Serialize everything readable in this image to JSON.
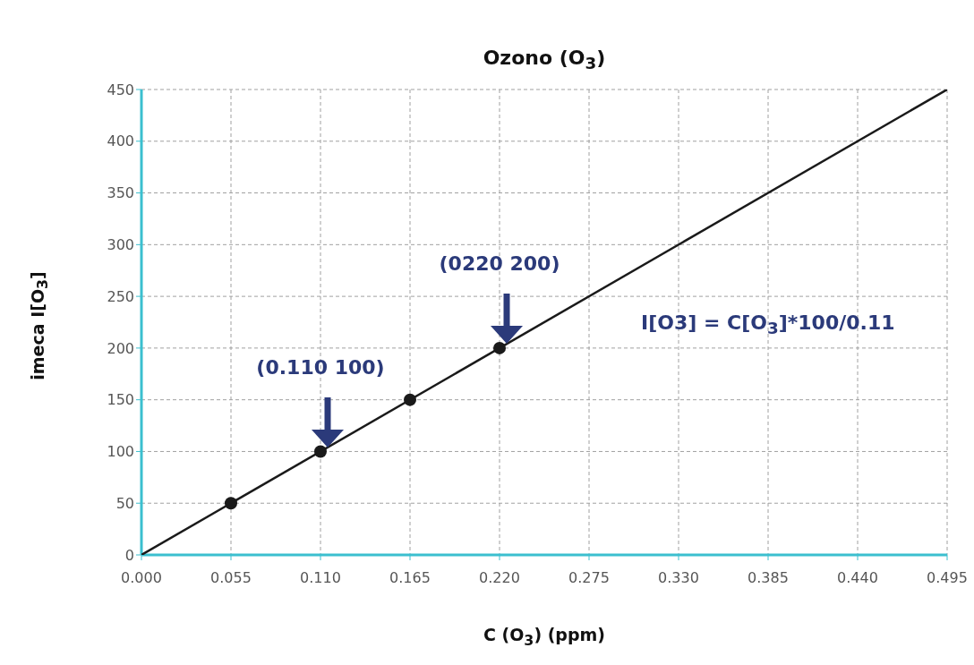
{
  "chart_data": {
    "type": "scatter",
    "title": "Ozono (O$_{3}$)",
    "xlabel": "C (O$_{3}$) (ppm)",
    "ylabel": "imeca I[O$_{3}$]",
    "xlim": [
      0,
      0.495
    ],
    "xticks": [
      {
        "value": 0,
        "label": "0.000"
      },
      {
        "value": 0.055,
        "label": "0.055"
      },
      {
        "value": 0.11,
        "label": "0.110"
      },
      {
        "value": 0.165,
        "label": "0.165"
      },
      {
        "value": 0.22,
        "label": "0.220"
      },
      {
        "value": 0.275,
        "label": "0.275"
      },
      {
        "value": 0.33,
        "label": "0.330"
      },
      {
        "value": 0.385,
        "label": "0.385"
      },
      {
        "value": 0.44,
        "label": "0.440"
      },
      {
        "value": 0.495,
        "label": "0.495"
      }
    ],
    "ylim": [
      0,
      450
    ],
    "yticks": [
      0,
      50,
      100,
      150,
      200,
      250,
      300,
      350,
      400,
      450
    ],
    "grid": true,
    "series": [
      {
        "type": "line",
        "color": "#1a1a1a",
        "x": [
          0,
          0.495
        ],
        "values": [
          0,
          450
        ],
        "marker": "none",
        "line_style": "solid"
      },
      {
        "color": "#1a1a1a",
        "x": [
          0.055,
          0.11,
          0.165,
          0.22
        ],
        "values": [
          50,
          100,
          150,
          200
        ],
        "marker": "circle"
      }
    ],
    "annotations": [
      "(0.110 100)",
      "(0220 200)",
      "I[O3] = C[O$_{3}$]*100/0.11"
    ]
  }
}
